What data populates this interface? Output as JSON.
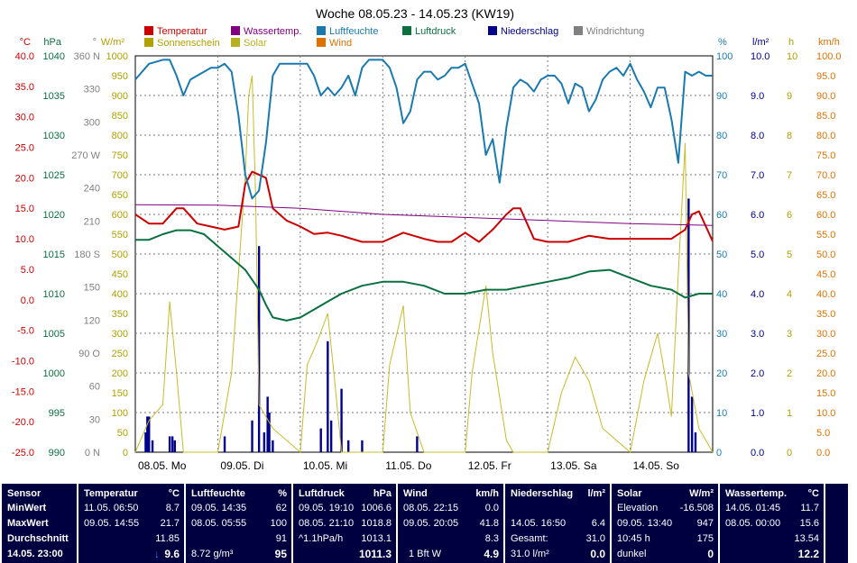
{
  "chart_data": {
    "type": "line",
    "title": "Woche 08.05.23 - 14.05.23 (KW19)",
    "x_labels": [
      "08.05. Mo",
      "09.05. Di",
      "10.05. Mi",
      "11.05. Do",
      "12.05. Fr",
      "13.05. Sa",
      "14.05. So"
    ],
    "x_range_hours": [
      0,
      168
    ],
    "legend": [
      {
        "label": "Temperatur",
        "color": "#cc0000"
      },
      {
        "label": "Wassertemp.",
        "color": "#800080"
      },
      {
        "label": "Luftfeuchte",
        "color": "#1a7ab0"
      },
      {
        "label": "Luftdruck",
        "color": "#0a7040"
      },
      {
        "label": "Niederschlag",
        "color": "#00008b"
      },
      {
        "label": "Windrichtung",
        "color": "#808080"
      },
      {
        "label": "Sonnenschein",
        "color": "#b0a000"
      },
      {
        "label": "Solar",
        "color": "#b8b020"
      },
      {
        "label": "Wind",
        "color": "#e07000"
      }
    ],
    "axes_left": [
      {
        "unit": "°C",
        "color": "#cc0000",
        "ticks": [
          "40.0",
          "35.0",
          "30.0",
          "25.0",
          "20.0",
          "15.0",
          "10.0",
          "5.0",
          "0.0",
          "-5.0",
          "-10.0",
          "-15.0",
          "-20.0",
          "-25.0"
        ],
        "range": [
          -25,
          40
        ]
      },
      {
        "unit": "hPa",
        "color": "#0a7040",
        "ticks": [
          "1040",
          "1035",
          "1030",
          "1025",
          "1020",
          "1015",
          "1010",
          "1005",
          "1000",
          "995",
          "990"
        ],
        "range": [
          990,
          1040
        ]
      },
      {
        "unit": "°",
        "color": "#808080",
        "ticks": [
          "360 N",
          "330",
          "300",
          "270 W",
          "240",
          "210",
          "180 S",
          "150",
          "120",
          "90 O",
          "60",
          "30",
          "0 N"
        ],
        "range": [
          0,
          360
        ]
      },
      {
        "unit": "W/m²",
        "color": "#b0a000",
        "ticks": [
          "1000",
          "950",
          "900",
          "850",
          "800",
          "750",
          "700",
          "650",
          "600",
          "550",
          "500",
          "450",
          "400",
          "350",
          "300",
          "250",
          "200",
          "150",
          "100",
          "50",
          "0"
        ],
        "range": [
          0,
          1000
        ]
      }
    ],
    "axes_right": [
      {
        "unit": "%",
        "color": "#1a7ab0",
        "ticks": [
          "100",
          "90",
          "80",
          "70",
          "60",
          "50",
          "40",
          "30",
          "20",
          "10",
          "0"
        ],
        "range": [
          0,
          100
        ]
      },
      {
        "unit": "l/m²",
        "color": "#00008b",
        "ticks": [
          "10.0",
          "9.0",
          "8.0",
          "7.0",
          "6.0",
          "5.0",
          "4.0",
          "3.0",
          "2.0",
          "1.0",
          "0.0"
        ],
        "range": [
          0,
          10
        ]
      },
      {
        "unit": "h",
        "color": "#b0a000",
        "ticks": [
          "10",
          "9",
          "8",
          "7",
          "6",
          "5",
          "4",
          "3",
          "2",
          "1",
          "0"
        ],
        "range": [
          0,
          10
        ]
      },
      {
        "unit": "km/h",
        "color": "#e07000",
        "ticks": [
          "100.0",
          "95.0",
          "90.0",
          "85.0",
          "80.0",
          "75.0",
          "70.0",
          "65.0",
          "60.0",
          "55.0",
          "50.0",
          "45.0",
          "40.0",
          "35.0",
          "30.0",
          "25.0",
          "20.0",
          "15.0",
          "10.0",
          "5.0",
          "0.0"
        ],
        "range": [
          0,
          100
        ]
      }
    ],
    "series": [
      {
        "name": "Temperatur",
        "color": "#cc0000",
        "x": [
          0,
          4,
          8,
          12,
          14,
          18,
          22,
          26,
          30,
          32,
          34,
          38,
          40,
          44,
          48,
          52,
          56,
          60,
          66,
          72,
          78,
          84,
          88,
          92,
          96,
          100,
          104,
          108,
          110,
          112,
          116,
          120,
          126,
          132,
          138,
          144,
          150,
          156,
          160,
          162,
          164,
          168
        ],
        "y": [
          14,
          12.5,
          12.5,
          15,
          15,
          12.5,
          12,
          11.5,
          12,
          19,
          21,
          20,
          15,
          13,
          12,
          10.8,
          11,
          10.5,
          9.5,
          9.5,
          11,
          10,
          9.5,
          9.5,
          11,
          9.5,
          11.5,
          14,
          15,
          15,
          10,
          9.5,
          9.5,
          10.5,
          10,
          10,
          10,
          10,
          11.5,
          14,
          14.5,
          9.6
        ]
      },
      {
        "name": "Wassertemp.",
        "color": "#800080",
        "x": [
          0,
          24,
          48,
          72,
          96,
          120,
          144,
          168
        ],
        "y": [
          15.6,
          15.5,
          15.0,
          14.0,
          13.5,
          13.0,
          12.5,
          12.2
        ]
      },
      {
        "name": "Luftfeuchte",
        "color": "#1a7ab0",
        "x": [
          0,
          4,
          8,
          10,
          12,
          14,
          16,
          18,
          20,
          22,
          24,
          26,
          28,
          30,
          32,
          34,
          36,
          38,
          40,
          42,
          44,
          46,
          48,
          50,
          52,
          54,
          56,
          58,
          60,
          62,
          64,
          66,
          68,
          70,
          72,
          74,
          76,
          78,
          80,
          82,
          84,
          86,
          88,
          90,
          92,
          94,
          96,
          98,
          100,
          102,
          104,
          106,
          108,
          110,
          112,
          114,
          116,
          118,
          120,
          122,
          124,
          126,
          128,
          130,
          132,
          134,
          136,
          138,
          140,
          142,
          144,
          146,
          148,
          150,
          152,
          154,
          156,
          158,
          160,
          162,
          164,
          166,
          168
        ],
        "y": [
          94,
          98,
          99,
          99,
          95,
          90,
          94,
          95,
          96,
          97,
          97,
          98,
          96,
          85,
          70,
          64,
          66,
          78,
          95,
          98,
          98,
          98,
          98,
          98,
          95,
          90,
          92,
          90,
          92,
          95,
          90,
          97,
          99,
          99,
          99,
          97,
          92,
          83,
          86,
          94,
          96,
          96,
          94,
          95,
          97,
          97,
          98,
          93,
          88,
          75,
          79,
          68,
          82,
          92,
          94,
          93,
          91,
          94,
          95,
          95,
          93,
          88,
          93,
          92,
          86,
          89,
          94,
          96,
          97,
          95,
          98,
          94,
          91,
          87,
          92,
          92,
          84,
          73,
          96,
          95,
          96,
          95,
          95
        ]
      },
      {
        "name": "Luftdruck",
        "color": "#0a7040",
        "x": [
          0,
          4,
          8,
          12,
          16,
          20,
          24,
          28,
          32,
          36,
          38,
          40,
          44,
          48,
          52,
          56,
          60,
          66,
          72,
          78,
          84,
          90,
          96,
          102,
          108,
          114,
          120,
          126,
          132,
          138,
          144,
          150,
          156,
          160,
          164,
          168
        ],
        "y": [
          1016.8,
          1016.8,
          1017.5,
          1018,
          1018,
          1017.5,
          1016,
          1014.5,
          1013,
          1010.5,
          1008.6,
          1007,
          1006.6,
          1007,
          1008,
          1009,
          1010,
          1011,
          1011.5,
          1011.5,
          1011,
          1010,
          1010,
          1010.5,
          1010.5,
          1011,
          1011.5,
          1012,
          1012.8,
          1013,
          1012,
          1011,
          1010.5,
          1009.5,
          1010,
          1010
        ]
      }
    ],
    "grid": true,
    "legend_position": "top"
  },
  "table": {
    "sensor": {
      "header": "Sensor",
      "min": "MinWert",
      "max": "MaxWert",
      "avg": "Durchschnitt",
      "now": "14.05. 23:00"
    },
    "temperatur": {
      "header": "Temperatur",
      "unit": "°C",
      "min_t": "11.05. 06:50",
      "min_v": "8.7",
      "max_t": "09.05. 14:55",
      "max_v": "21.7",
      "avg_v": "11.85",
      "trend": "↓",
      "now_v": "9.6"
    },
    "luftfeuchte": {
      "header": "Luftfeuchte",
      "unit": "%",
      "min_t": "09.05. 14:35",
      "min_v": "62",
      "max_t": "08.05. 05:55",
      "max_v": "100",
      "avg_v": "91",
      "now_l": "8.72 g/m³",
      "now_v": "95"
    },
    "luftdruck": {
      "header": "Luftdruck",
      "unit": "hPa",
      "min_t": "09.05. 19:10",
      "min_v": "1006.6",
      "max_t": "08.05. 21:10",
      "max_v": "1018.8",
      "avg_l": "^1.1hPa/h",
      "avg_v": "1013.1",
      "now_v": "1011.3"
    },
    "wind": {
      "header": "Wind",
      "unit": "km/h",
      "min_t": "08.05. 22:15",
      "min_v": "0.0",
      "max_t": "09.05. 20:05",
      "max_v": "41.8",
      "avg_v": "8.3",
      "now_l": "1 Bft W",
      "now_v": "4.9"
    },
    "niederschlag": {
      "header": "Niederschlag",
      "unit": "l/m²",
      "max_t": "14.05. 16:50",
      "max_v": "6.4",
      "avg_l": "Gesamt:",
      "avg_v": "31.0",
      "now_l": "31.0 l/m²",
      "now_v": "0.0"
    },
    "solar": {
      "header": "Solar",
      "unit": "W/m²",
      "min_l": "Elevation",
      "min_v": "-16.508",
      "max_t": "09.05. 13:40",
      "max_v": "947",
      "avg_l": "10:45 h",
      "avg_v": "175",
      "now_l": "dunkel",
      "now_v": "0"
    },
    "wassertemp": {
      "header": "Wassertemp.",
      "unit": "°C",
      "min_t": "14.05. 01:45",
      "min_v": "11.7",
      "max_t": "08.05. 00:00",
      "max_v": "15.6",
      "avg_v": "13.54",
      "now_v": "12.2"
    }
  }
}
